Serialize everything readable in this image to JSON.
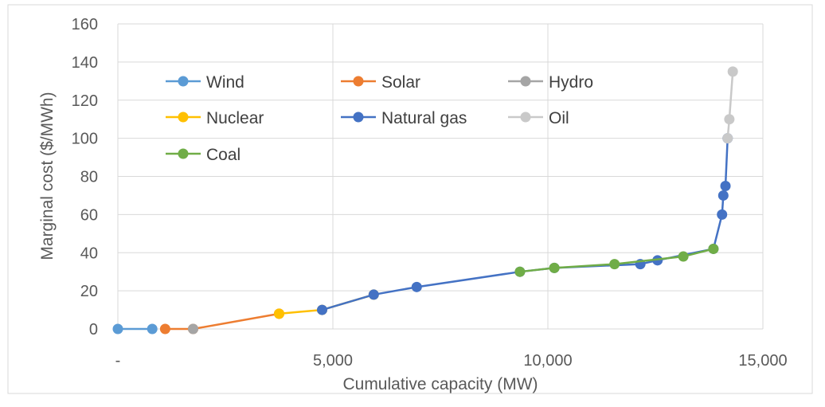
{
  "chart_data": {
    "type": "line",
    "title": "",
    "xlabel": "Cumulative capacity (MW)",
    "ylabel": "Marginal cost ($/MWh)",
    "xlim": [
      0,
      15000
    ],
    "ylim": [
      0,
      160
    ],
    "x_ticks": [
      0,
      5000,
      10000,
      15000
    ],
    "x_tick_labels": [
      "-",
      "5,000",
      "10,000",
      "15,000"
    ],
    "y_ticks": [
      0,
      20,
      40,
      60,
      80,
      100,
      120,
      140,
      160
    ],
    "y_tick_labels": [
      "0",
      "20",
      "40",
      "60",
      "80",
      "100",
      "120",
      "140",
      "160"
    ],
    "grid": true,
    "legend_position": "top-left inside plot",
    "series": [
      {
        "name": "Wind",
        "color": "#5b9bd5",
        "points": [
          [
            0,
            0
          ],
          [
            800,
            0
          ]
        ]
      },
      {
        "name": "Solar",
        "color": "#ed7d31",
        "points": [
          [
            1100,
            0
          ],
          [
            1750,
            0
          ],
          [
            3750,
            8
          ]
        ]
      },
      {
        "name": "Hydro",
        "color": "#a5a5a5",
        "points": [
          [
            1750,
            0
          ]
        ]
      },
      {
        "name": "Nuclear",
        "color": "#ffc000",
        "points": [
          [
            3750,
            8
          ],
          [
            4750,
            10
          ],
          [
            5950,
            18
          ]
        ]
      },
      {
        "name": "Natural gas",
        "color": "#4472c4",
        "points": [
          [
            4750,
            10
          ],
          [
            5950,
            18
          ],
          [
            6950,
            22
          ],
          [
            9350,
            30
          ],
          [
            10150,
            32
          ],
          [
            12150,
            34
          ],
          [
            12550,
            36
          ],
          [
            13850,
            42
          ],
          [
            14050,
            60
          ],
          [
            14080,
            70
          ],
          [
            14130,
            75
          ],
          [
            14180,
            100
          ]
        ]
      },
      {
        "name": "Oil",
        "color": "#c9c9c9",
        "points": [
          [
            14180,
            100
          ],
          [
            14220,
            110
          ],
          [
            14300,
            135
          ]
        ]
      },
      {
        "name": "Coal",
        "color": "#70ad47",
        "points": [
          [
            9350,
            30
          ],
          [
            10150,
            32
          ],
          [
            11550,
            34
          ],
          [
            13150,
            38
          ],
          [
            13850,
            42
          ]
        ]
      }
    ]
  }
}
